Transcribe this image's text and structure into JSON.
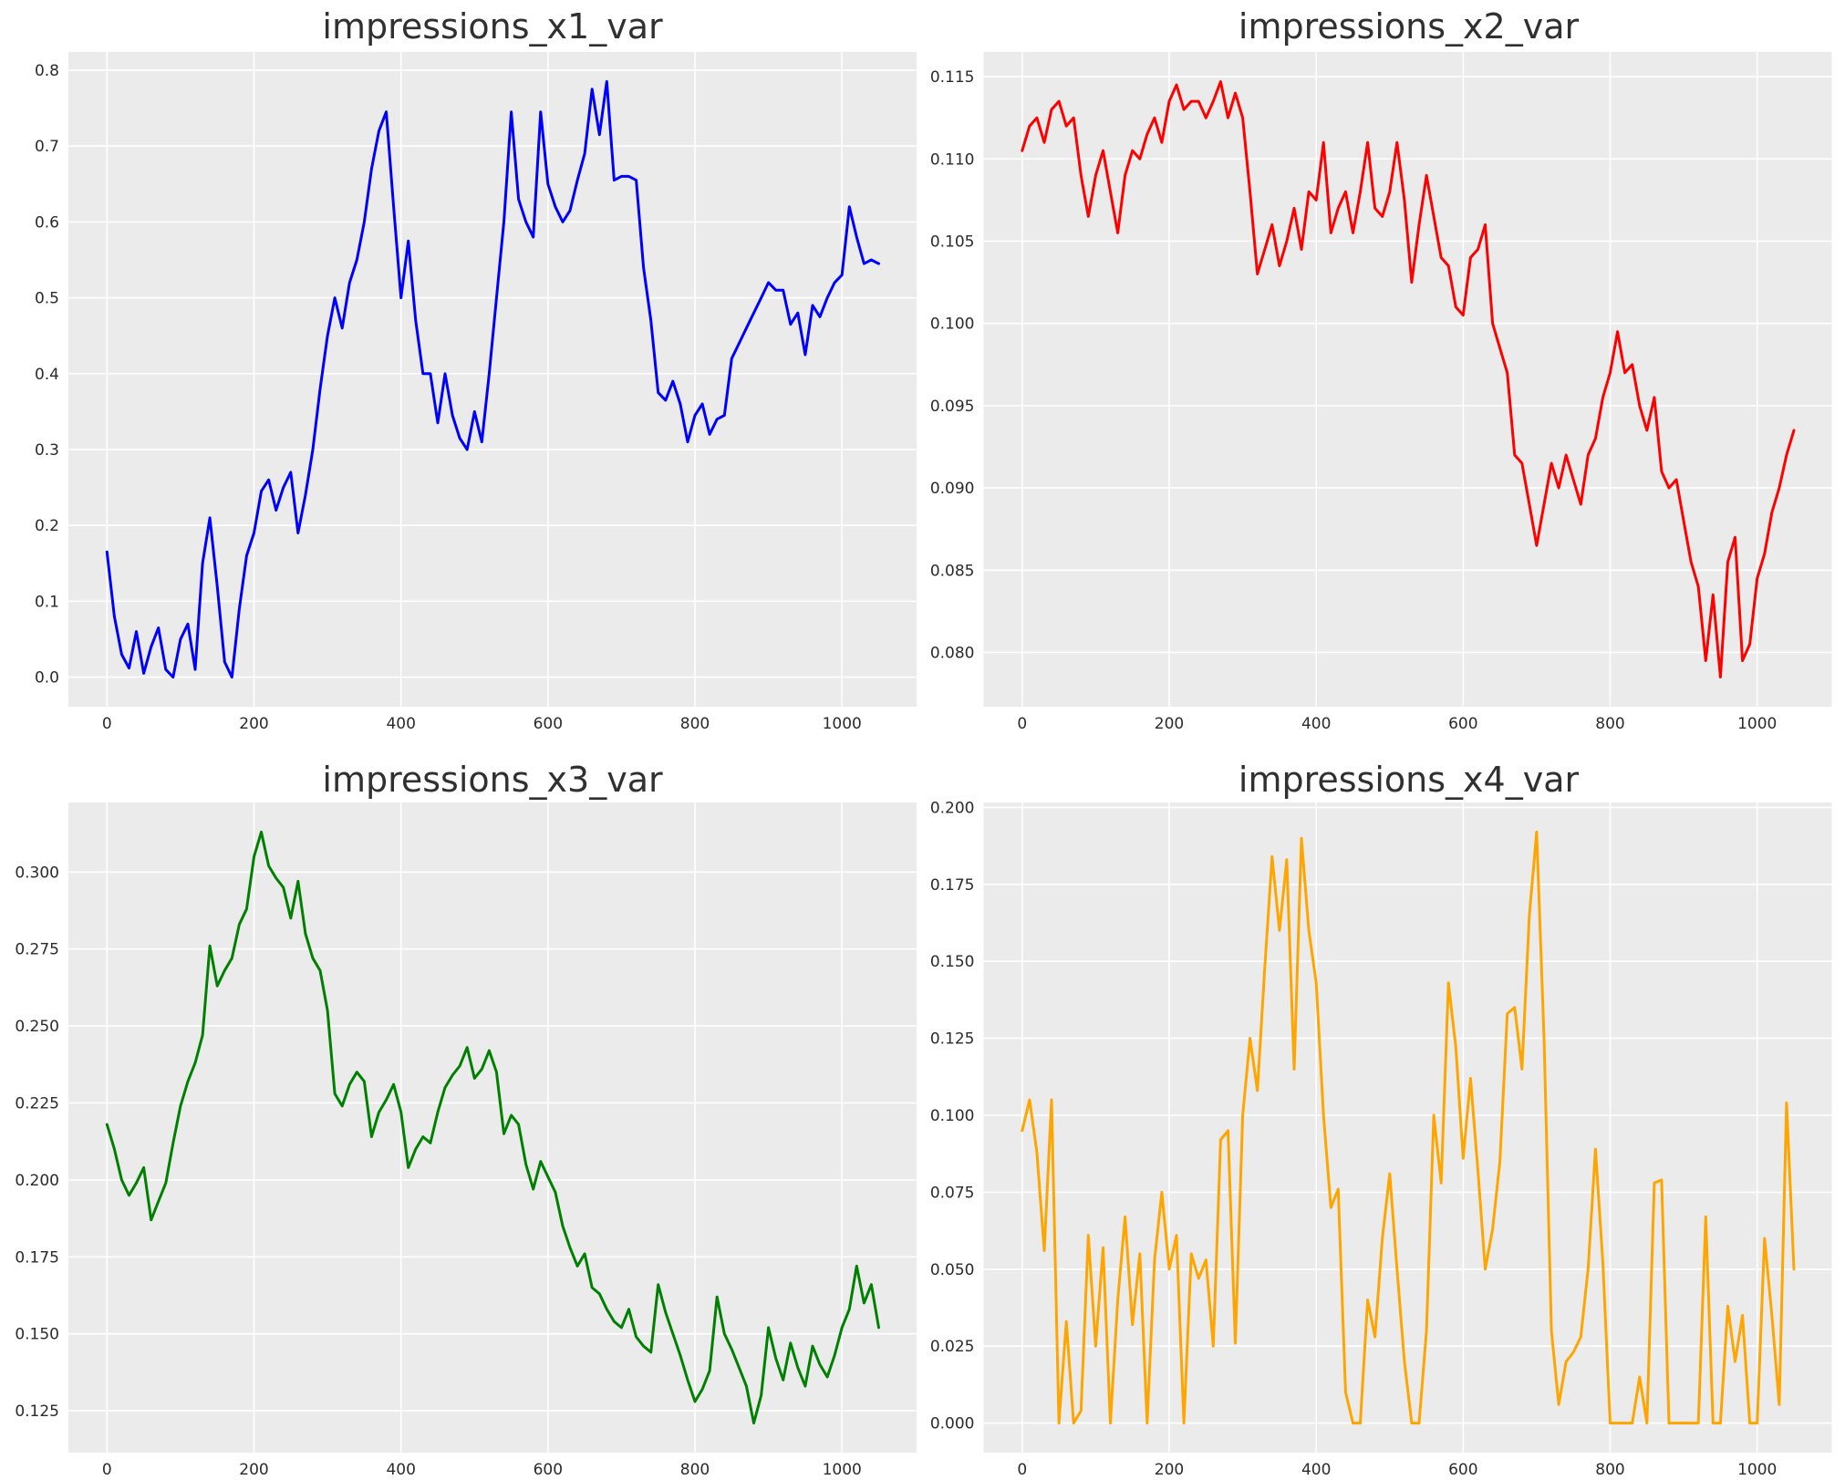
{
  "figure": {
    "background": "#ffffff",
    "axes_background": "#ebebeb",
    "grid_color": "#ffffff",
    "title_color": "#303030",
    "tick_color": "#2b2b2b"
  },
  "chart_data": [
    {
      "type": "line",
      "title": "impressions_x1_var",
      "color": "#0000ff",
      "xlabel": "",
      "ylabel": "",
      "legend": "none",
      "grid": true,
      "xlim": [
        -52.5,
        1101.5
      ],
      "ylim": [
        -0.039,
        0.824
      ],
      "xticks": [
        0,
        200,
        400,
        600,
        800,
        1000
      ],
      "yticks": [
        0.0,
        0.1,
        0.2,
        0.3,
        0.4,
        0.5,
        0.6,
        0.7,
        0.8
      ],
      "ytick_decimals": 1,
      "x_start": 0,
      "x_step": 10,
      "values": [
        0.165,
        0.08,
        0.03,
        0.012,
        0.06,
        0.005,
        0.04,
        0.065,
        0.01,
        0.0,
        0.05,
        0.07,
        0.01,
        0.15,
        0.21,
        0.12,
        0.02,
        0.0,
        0.09,
        0.16,
        0.19,
        0.245,
        0.26,
        0.22,
        0.25,
        0.27,
        0.19,
        0.24,
        0.3,
        0.38,
        0.45,
        0.5,
        0.46,
        0.52,
        0.55,
        0.6,
        0.67,
        0.72,
        0.745,
        0.62,
        0.5,
        0.575,
        0.47,
        0.4,
        0.4,
        0.335,
        0.4,
        0.345,
        0.315,
        0.3,
        0.35,
        0.31,
        0.4,
        0.5,
        0.6,
        0.745,
        0.63,
        0.6,
        0.58,
        0.745,
        0.65,
        0.62,
        0.6,
        0.615,
        0.655,
        0.69,
        0.775,
        0.715,
        0.785,
        0.655,
        0.66,
        0.66,
        0.655,
        0.54,
        0.47,
        0.375,
        0.365,
        0.39,
        0.36,
        0.31,
        0.345,
        0.36,
        0.32,
        0.34,
        0.345,
        0.42,
        0.44,
        0.46,
        0.48,
        0.5,
        0.52,
        0.51,
        0.51,
        0.465,
        0.48,
        0.425,
        0.49,
        0.475,
        0.5,
        0.52,
        0.53,
        0.62,
        0.58,
        0.545,
        0.55,
        0.545
      ]
    },
    {
      "type": "line",
      "title": "impressions_x2_var",
      "color": "#ff0000",
      "xlabel": "",
      "ylabel": "",
      "legend": "none",
      "grid": true,
      "xlim": [
        -52.5,
        1101.5
      ],
      "ylim": [
        0.0767,
        0.1165
      ],
      "xticks": [
        0,
        200,
        400,
        600,
        800,
        1000
      ],
      "yticks": [
        0.08,
        0.085,
        0.09,
        0.095,
        0.1,
        0.105,
        0.11,
        0.115
      ],
      "ytick_decimals": 3,
      "x_start": 0,
      "x_step": 10,
      "values": [
        0.1105,
        0.112,
        0.1125,
        0.111,
        0.113,
        0.1135,
        0.112,
        0.1125,
        0.109,
        0.1065,
        0.109,
        0.1105,
        0.108,
        0.1055,
        0.109,
        0.1105,
        0.11,
        0.1115,
        0.1125,
        0.111,
        0.1135,
        0.1145,
        0.113,
        0.1135,
        0.1135,
        0.1125,
        0.1135,
        0.1147,
        0.1125,
        0.114,
        0.1125,
        0.108,
        0.103,
        0.1045,
        0.106,
        0.1035,
        0.105,
        0.107,
        0.1045,
        0.108,
        0.1075,
        0.111,
        0.1055,
        0.107,
        0.108,
        0.1055,
        0.108,
        0.111,
        0.107,
        0.1065,
        0.108,
        0.111,
        0.1075,
        0.1025,
        0.106,
        0.109,
        0.1065,
        0.104,
        0.1035,
        0.101,
        0.1005,
        0.104,
        0.1045,
        0.106,
        0.1,
        0.0985,
        0.097,
        0.092,
        0.0915,
        0.089,
        0.0865,
        0.089,
        0.0915,
        0.09,
        0.092,
        0.0905,
        0.089,
        0.092,
        0.093,
        0.0955,
        0.097,
        0.0995,
        0.097,
        0.0975,
        0.095,
        0.0935,
        0.0955,
        0.091,
        0.09,
        0.0905,
        0.088,
        0.0855,
        0.084,
        0.0795,
        0.0835,
        0.0785,
        0.0855,
        0.087,
        0.0795,
        0.0805,
        0.0845,
        0.086,
        0.0885,
        0.09,
        0.092,
        0.0935
      ]
    },
    {
      "type": "line",
      "title": "impressions_x3_var",
      "color": "#008000",
      "xlabel": "",
      "ylabel": "",
      "legend": "none",
      "grid": true,
      "xlim": [
        -52.5,
        1101.5
      ],
      "ylim": [
        0.1114,
        0.3226
      ],
      "xticks": [
        0,
        200,
        400,
        600,
        800,
        1000
      ],
      "yticks": [
        0.125,
        0.15,
        0.175,
        0.2,
        0.225,
        0.25,
        0.275,
        0.3
      ],
      "ytick_decimals": 3,
      "x_start": 0,
      "x_step": 10,
      "values": [
        0.218,
        0.21,
        0.2,
        0.195,
        0.199,
        0.204,
        0.187,
        0.193,
        0.199,
        0.212,
        0.224,
        0.232,
        0.238,
        0.247,
        0.276,
        0.263,
        0.268,
        0.272,
        0.283,
        0.288,
        0.305,
        0.313,
        0.302,
        0.298,
        0.295,
        0.285,
        0.297,
        0.28,
        0.272,
        0.268,
        0.255,
        0.228,
        0.224,
        0.231,
        0.235,
        0.232,
        0.214,
        0.222,
        0.226,
        0.231,
        0.222,
        0.204,
        0.21,
        0.214,
        0.212,
        0.222,
        0.23,
        0.234,
        0.237,
        0.243,
        0.233,
        0.236,
        0.242,
        0.235,
        0.215,
        0.221,
        0.218,
        0.205,
        0.197,
        0.206,
        0.201,
        0.196,
        0.185,
        0.178,
        0.172,
        0.176,
        0.165,
        0.163,
        0.158,
        0.154,
        0.152,
        0.158,
        0.149,
        0.146,
        0.144,
        0.166,
        0.157,
        0.15,
        0.143,
        0.135,
        0.128,
        0.132,
        0.138,
        0.162,
        0.15,
        0.145,
        0.139,
        0.133,
        0.121,
        0.13,
        0.152,
        0.142,
        0.135,
        0.147,
        0.139,
        0.133,
        0.146,
        0.14,
        0.136,
        0.143,
        0.152,
        0.158,
        0.172,
        0.16,
        0.166,
        0.152
      ]
    },
    {
      "type": "line",
      "title": "impressions_x4_var",
      "color": "#ffa500",
      "xlabel": "",
      "ylabel": "",
      "legend": "none",
      "grid": true,
      "xlim": [
        -52.5,
        1101.5
      ],
      "ylim": [
        -0.0096,
        0.2016
      ],
      "xticks": [
        0,
        200,
        400,
        600,
        800,
        1000
      ],
      "yticks": [
        0.0,
        0.025,
        0.05,
        0.075,
        0.1,
        0.125,
        0.15,
        0.175,
        0.2
      ],
      "ytick_decimals": 3,
      "x_start": 0,
      "x_step": 10,
      "values": [
        0.095,
        0.105,
        0.088,
        0.056,
        0.105,
        0.0,
        0.033,
        0.0,
        0.004,
        0.061,
        0.025,
        0.057,
        0.0,
        0.04,
        0.067,
        0.032,
        0.055,
        0.0,
        0.053,
        0.075,
        0.05,
        0.061,
        0.0,
        0.055,
        0.047,
        0.053,
        0.025,
        0.092,
        0.095,
        0.026,
        0.1,
        0.125,
        0.108,
        0.148,
        0.184,
        0.16,
        0.183,
        0.115,
        0.19,
        0.16,
        0.143,
        0.1,
        0.07,
        0.076,
        0.01,
        0.0,
        0.0,
        0.04,
        0.028,
        0.06,
        0.081,
        0.05,
        0.02,
        0.0,
        0.0,
        0.03,
        0.1,
        0.078,
        0.143,
        0.122,
        0.086,
        0.112,
        0.082,
        0.05,
        0.063,
        0.085,
        0.133,
        0.135,
        0.115,
        0.165,
        0.192,
        0.125,
        0.03,
        0.006,
        0.02,
        0.023,
        0.028,
        0.05,
        0.089,
        0.052,
        0.0,
        0.0,
        0.0,
        0.0,
        0.015,
        0.0,
        0.078,
        0.079,
        0.0,
        0.0,
        0.0,
        0.0,
        0.0,
        0.067,
        0.0,
        0.0,
        0.038,
        0.02,
        0.035,
        0.0,
        0.0,
        0.06,
        0.035,
        0.006,
        0.104,
        0.05
      ]
    }
  ]
}
